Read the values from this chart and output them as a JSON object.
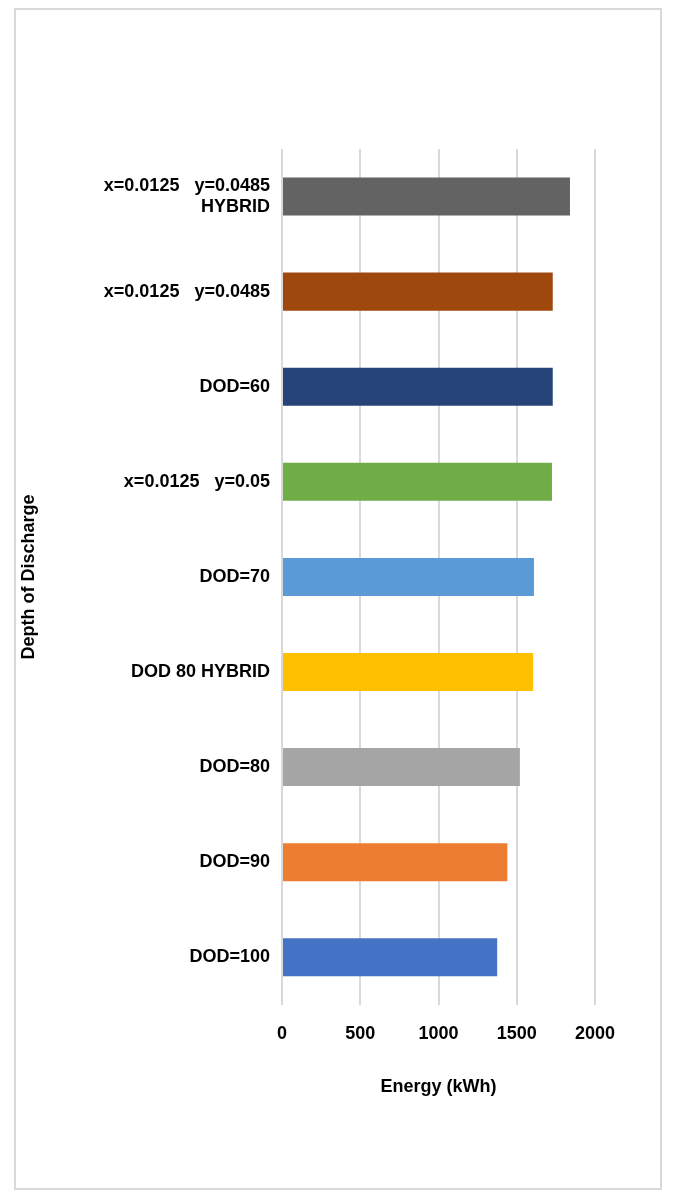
{
  "chart_data": {
    "type": "bar",
    "orientation": "horizontal",
    "xlabel": "Energy (kWh)",
    "ylabel": "Depth of Discharge",
    "categories": [
      "x=0.0125   y=0.0485 HYBRID",
      "x=0.0125   y=0.0485",
      "DOD=60",
      "x=0.0125   y=0.05",
      "DOD=70",
      "DOD 80 HYBRID",
      "DOD=80",
      "DOD=90",
      "DOD=100"
    ],
    "values": [
      1840,
      1730,
      1730,
      1725,
      1610,
      1605,
      1520,
      1440,
      1375
    ],
    "colors": [
      "#636363",
      "#9e480e",
      "#264478",
      "#70ad47",
      "#5b9bd5",
      "#ffc000",
      "#a5a5a5",
      "#ed7d31",
      "#4472c4"
    ],
    "xlim": [
      0,
      2000
    ],
    "xticks": [
      0,
      500,
      1000,
      1500,
      2000
    ],
    "grid": "x"
  }
}
